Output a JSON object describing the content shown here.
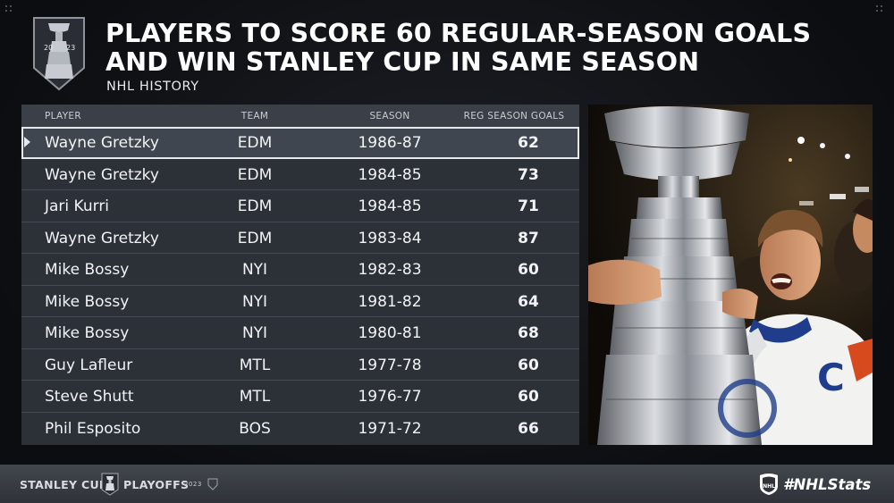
{
  "header": {
    "logo_year_left": "20",
    "logo_year_right": "23",
    "title": "PLAYERS TO SCORE 60 REGULAR-SEASON GOALS AND WIN STANLEY CUP IN SAME SEASON",
    "subtitle": "NHL HISTORY"
  },
  "table": {
    "columns": {
      "player": "PLAYER",
      "team": "TEAM",
      "season": "SEASON",
      "goals": "REG SEASON GOALS"
    },
    "rows": [
      {
        "player": "Wayne Gretzky",
        "team": "EDM",
        "season": "1986-87",
        "goals": "62"
      },
      {
        "player": "Wayne Gretzky",
        "team": "EDM",
        "season": "1984-85",
        "goals": "73"
      },
      {
        "player": "Jari Kurri",
        "team": "EDM",
        "season": "1984-85",
        "goals": "71"
      },
      {
        "player": "Wayne Gretzky",
        "team": "EDM",
        "season": "1983-84",
        "goals": "87"
      },
      {
        "player": "Mike Bossy",
        "team": "NYI",
        "season": "1982-83",
        "goals": "60"
      },
      {
        "player": "Mike Bossy",
        "team": "NYI",
        "season": "1981-82",
        "goals": "64"
      },
      {
        "player": "Mike Bossy",
        "team": "NYI",
        "season": "1980-81",
        "goals": "68"
      },
      {
        "player": "Guy Lafleur",
        "team": "MTL",
        "season": "1977-78",
        "goals": "60"
      },
      {
        "player": "Steve Shutt",
        "team": "MTL",
        "season": "1976-77",
        "goals": "60"
      },
      {
        "player": "Phil Esposito",
        "team": "BOS",
        "season": "1971-72",
        "goals": "66"
      }
    ]
  },
  "photo": {
    "jersey_letter": "C"
  },
  "footer": {
    "left_word": "STANLEY CUP",
    "right_word": "PLAYOFFS",
    "year": "2023",
    "hashtag": "#NHLStats"
  },
  "colors": {
    "background": "#0e1014",
    "table_bg": "#2c3138",
    "header_bg": "#3b4048",
    "selected_row": "#40464f",
    "text": "#ffffff"
  }
}
